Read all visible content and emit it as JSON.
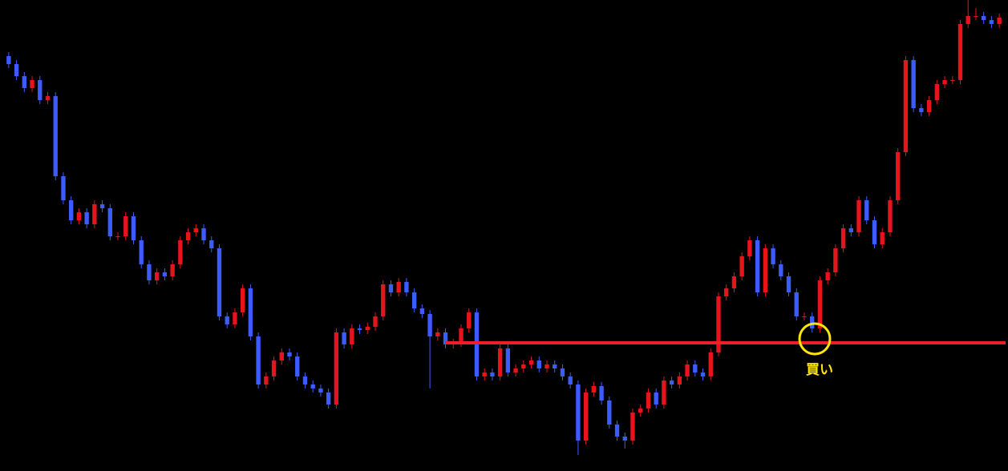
{
  "chart_data": {
    "type": "candlestick",
    "up_color": "#e8141c",
    "down_color": "#3d5cff",
    "ylim": [
      0,
      588
    ],
    "open": [
      518,
      508,
      493,
      478,
      488,
      463,
      468,
      368,
      338,
      313,
      323,
      308,
      333,
      328,
      293,
      293,
      318,
      288,
      258,
      238,
      248,
      243,
      258,
      288,
      298,
      303,
      288,
      278,
      193,
      183,
      198,
      228,
      168,
      108,
      118,
      138,
      148,
      143,
      118,
      108,
      103,
      98,
      83,
      173,
      158,
      178,
      176,
      180,
      193,
      233,
      223,
      236,
      223,
      203,
      196,
      168,
      173,
      158,
      160,
      178,
      198,
      118,
      123,
      118,
      153,
      123,
      128,
      133,
      138,
      128,
      133,
      128,
      118,
      108,
      38,
      98,
      106,
      88,
      58,
      43,
      38,
      73,
      78,
      98,
      83,
      113,
      108,
      118,
      133,
      123,
      118,
      148,
      218,
      228,
      243,
      268,
      288,
      223,
      278,
      258,
      243,
      223,
      193,
      193,
      178,
      238,
      248,
      278,
      303,
      298,
      338,
      313,
      283,
      298,
      338,
      398,
      513,
      453,
      448,
      463,
      483,
      488,
      488,
      558,
      568,
      568,
      563,
      558
    ],
    "high": [
      523,
      513,
      498,
      493,
      493,
      473,
      473,
      373,
      343,
      328,
      328,
      338,
      338,
      333,
      298,
      323,
      323,
      293,
      263,
      253,
      253,
      263,
      293,
      303,
      308,
      308,
      293,
      283,
      198,
      203,
      233,
      233,
      173,
      123,
      143,
      153,
      153,
      148,
      123,
      113,
      108,
      103,
      178,
      178,
      183,
      183,
      185,
      198,
      238,
      238,
      241,
      241,
      228,
      208,
      201,
      178,
      178,
      165,
      183,
      203,
      203,
      128,
      128,
      158,
      158,
      133,
      138,
      143,
      143,
      138,
      138,
      133,
      123,
      113,
      103,
      111,
      111,
      93,
      63,
      48,
      78,
      83,
      103,
      103,
      118,
      118,
      123,
      138,
      138,
      128,
      153,
      223,
      233,
      248,
      273,
      293,
      293,
      283,
      283,
      263,
      248,
      228,
      198,
      198,
      243,
      253,
      283,
      308,
      308,
      343,
      343,
      318,
      303,
      343,
      403,
      518,
      518,
      458,
      468,
      488,
      493,
      493,
      563,
      588,
      578,
      573,
      568,
      571
    ],
    "low": [
      503,
      488,
      473,
      473,
      458,
      458,
      363,
      333,
      308,
      308,
      303,
      303,
      323,
      288,
      288,
      288,
      283,
      253,
      233,
      233,
      238,
      238,
      253,
      283,
      293,
      283,
      273,
      188,
      178,
      178,
      193,
      163,
      103,
      103,
      113,
      133,
      138,
      113,
      103,
      98,
      93,
      78,
      78,
      153,
      153,
      171,
      171,
      175,
      188,
      218,
      218,
      218,
      198,
      191,
      103,
      163,
      153,
      153,
      155,
      173,
      113,
      113,
      113,
      113,
      118,
      118,
      123,
      128,
      123,
      123,
      123,
      113,
      103,
      20,
      33,
      93,
      83,
      53,
      38,
      28,
      33,
      68,
      73,
      78,
      78,
      103,
      103,
      113,
      118,
      113,
      113,
      143,
      213,
      223,
      238,
      263,
      218,
      218,
      253,
      238,
      218,
      188,
      188,
      173,
      173,
      233,
      243,
      273,
      293,
      293,
      308,
      278,
      278,
      293,
      333,
      393,
      448,
      443,
      443,
      458,
      478,
      483,
      483,
      553,
      563,
      558,
      553,
      553
    ],
    "close": [
      508,
      493,
      478,
      488,
      463,
      468,
      368,
      338,
      313,
      323,
      308,
      333,
      328,
      293,
      293,
      318,
      288,
      258,
      238,
      248,
      243,
      258,
      288,
      298,
      303,
      288,
      278,
      193,
      183,
      198,
      228,
      168,
      108,
      118,
      138,
      148,
      143,
      118,
      108,
      103,
      98,
      83,
      173,
      158,
      178,
      176,
      180,
      193,
      233,
      223,
      236,
      223,
      203,
      196,
      168,
      173,
      158,
      160,
      178,
      198,
      118,
      123,
      118,
      153,
      123,
      128,
      133,
      138,
      128,
      133,
      128,
      118,
      108,
      38,
      98,
      106,
      88,
      58,
      43,
      38,
      73,
      78,
      98,
      83,
      113,
      108,
      118,
      133,
      123,
      118,
      148,
      218,
      228,
      243,
      268,
      288,
      223,
      278,
      258,
      243,
      223,
      193,
      193,
      178,
      238,
      248,
      278,
      303,
      298,
      338,
      313,
      283,
      298,
      338,
      398,
      513,
      453,
      448,
      463,
      483,
      488,
      488,
      558,
      568,
      568,
      563,
      558,
      566
    ],
    "level": 160,
    "level_color": "#f01e2a",
    "annotation": "買い",
    "annotation_color": "#ffe600"
  }
}
